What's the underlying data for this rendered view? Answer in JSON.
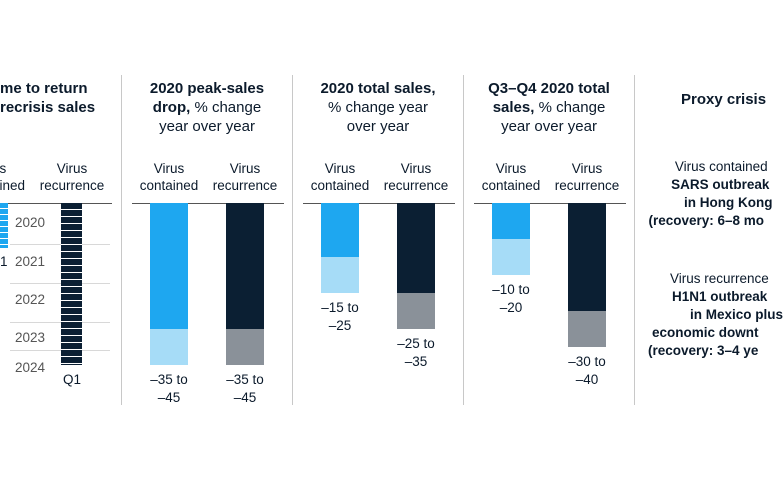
{
  "chart_data": [
    {
      "type": "bar",
      "title_lines": [
        "me to return",
        "recrisis sales"
      ],
      "categories": [
        "us",
        "Virus"
      ],
      "category_lines": [
        [
          "us",
          "ained"
        ],
        [
          "Virus",
          "recurrence"
        ]
      ],
      "year_ticks": [
        "2020",
        "2021",
        "2022",
        "2023",
        "2024"
      ],
      "end_labels": [
        "1",
        "Q1"
      ],
      "series": [
        {
          "range": [
            2020.0,
            2020.9
          ]
        },
        {
          "range": [
            2020.0,
            2024.25
          ]
        }
      ]
    },
    {
      "type": "bar",
      "title_bold": "2020 peak-sales drop,",
      "title_lines": [
        "2020 peak-sales",
        "drop, % change",
        "year over year"
      ],
      "categories": [
        "Virus contained",
        "Virus recurrence"
      ],
      "category_lines": [
        [
          "Virus",
          "contained"
        ],
        [
          "Virus",
          "recurrence"
        ]
      ],
      "ylim": [
        -50,
        0
      ],
      "series": [
        {
          "range_labels": [
            "–35 to",
            "–45"
          ],
          "range": [
            -35,
            -45
          ]
        },
        {
          "range_labels": [
            "–35 to",
            "–45"
          ],
          "range": [
            -35,
            -45
          ]
        }
      ]
    },
    {
      "type": "bar",
      "title_lines": [
        "2020 total sales,",
        "% change year",
        "over year"
      ],
      "categories": [
        "Virus contained",
        "Virus recurrence"
      ],
      "category_lines": [
        [
          "Virus",
          "contained"
        ],
        [
          "Virus",
          "recurrence"
        ]
      ],
      "ylim": [
        -50,
        0
      ],
      "series": [
        {
          "range_labels": [
            "–15 to",
            "–25"
          ],
          "range": [
            -15,
            -25
          ]
        },
        {
          "range_labels": [
            "–25 to",
            "–35"
          ],
          "range": [
            -25,
            -35
          ]
        }
      ]
    },
    {
      "type": "bar",
      "title_lines": [
        "Q3–Q4 2020 total",
        "sales, % change",
        "year over year"
      ],
      "categories": [
        "Virus contained",
        "Virus recurrence"
      ],
      "category_lines": [
        [
          "Virus",
          "contained"
        ],
        [
          "Virus",
          "recurrence"
        ]
      ],
      "ylim": [
        -50,
        0
      ],
      "series": [
        {
          "range_labels": [
            "–10 to",
            "–20"
          ],
          "range": [
            -10,
            -20
          ]
        },
        {
          "range_labels": [
            "–30 to",
            "–40"
          ],
          "range": [
            -30,
            -40
          ]
        }
      ]
    }
  ],
  "proxy": {
    "title": "Proxy crisis",
    "contained_lines": [
      "Virus contained",
      "SARS outbreak",
      "in Hong Kong",
      "(recovery: 6–8 mo"
    ],
    "recurrence_lines": [
      "Virus recurrence",
      "H1N1 outbreak",
      "in Mexico plus",
      "economic downt",
      "(recovery: 3–4 ye"
    ]
  },
  "colors": {
    "contained_dark": "#1ea7f0",
    "contained_light": "#a6dcf7",
    "recurrence_dark": "#0b1f33",
    "recurrence_light": "#8a9199"
  }
}
